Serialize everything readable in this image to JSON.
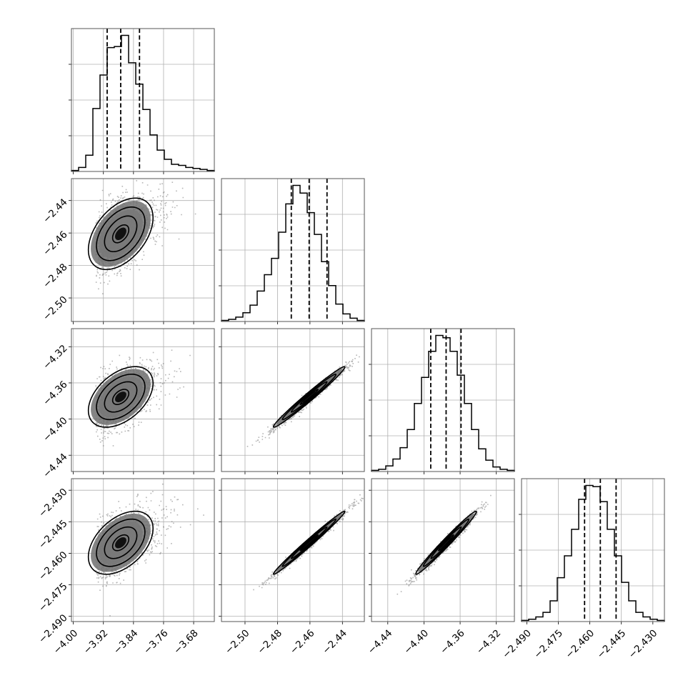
{
  "chart_data": {
    "type": "corner",
    "parameters": [
      {
        "ticks": [
          -4.0,
          -3.92,
          -3.84,
          -3.76,
          -3.68
        ],
        "tick_labels": [
          "−4.00",
          "−3.92",
          "−3.84",
          "−3.76",
          "−3.68"
        ],
        "range": [
          -4.005,
          -3.625
        ],
        "quantiles": [
          -3.91,
          -3.874,
          -3.824
        ],
        "median": -3.874
      },
      {
        "ticks": [
          -2.5,
          -2.48,
          -2.46,
          -2.44
        ],
        "tick_labels": [
          "−2.50",
          "−2.48",
          "−2.46",
          "−2.44"
        ],
        "range": [
          -2.5145,
          -2.4265
        ],
        "quantiles": [
          -2.4715,
          -2.4605,
          -2.4495
        ],
        "median": -2.4605
      },
      {
        "ticks": [
          -4.44,
          -4.4,
          -4.36,
          -4.32
        ],
        "tick_labels": [
          "−4.44",
          "−4.40",
          "−4.36",
          "−4.32"
        ],
        "range": [
          -4.458,
          -4.3
        ],
        "quantiles": [
          -4.3925,
          -4.3755,
          -4.359
        ],
        "median": -4.3755
      },
      {
        "ticks": [
          -2.49,
          -2.475,
          -2.46,
          -2.445,
          -2.43
        ],
        "tick_labels": [
          "−2.490",
          "−2.475",
          "−2.460",
          "−2.445",
          "−2.430"
        ],
        "range": [
          -2.4925,
          -2.4245
        ],
        "quantiles": [
          -2.4625,
          -2.455,
          -2.4475
        ],
        "median": -2.455
      }
    ],
    "histograms": [
      [
        1,
        4,
        16,
        62,
        95,
        122,
        123,
        134,
        107,
        86,
        61,
        36,
        21,
        12,
        7,
        6,
        4,
        3,
        2,
        1
      ],
      [
        1,
        2,
        4,
        8,
        15,
        28,
        43,
        58,
        82,
        108,
        125,
        118,
        100,
        80,
        55,
        33,
        16,
        7,
        3,
        1
      ],
      [
        1,
        2,
        5,
        11,
        21,
        37,
        60,
        83,
        106,
        120,
        118,
        106,
        85,
        60,
        37,
        20,
        10,
        4,
        2,
        1
      ],
      [
        1,
        2,
        4,
        8,
        18,
        38,
        57,
        80,
        106,
        118,
        117,
        104,
        80,
        57,
        34,
        18,
        8,
        4,
        2,
        1
      ]
    ],
    "pairs": [
      {
        "x": 0,
        "y": 1,
        "correlation": 0.45
      },
      {
        "x": 0,
        "y": 2,
        "correlation": 0.45
      },
      {
        "x": 1,
        "y": 2,
        "correlation": 0.985
      },
      {
        "x": 0,
        "y": 3,
        "correlation": 0.45
      },
      {
        "x": 1,
        "y": 3,
        "correlation": 0.99
      },
      {
        "x": 2,
        "y": 3,
        "correlation": 0.985
      }
    ],
    "contour_levels_sigma": [
      0.5,
      1.0,
      1.5,
      2.0
    ],
    "grid": true,
    "title": "",
    "colors": {
      "line": "#000000",
      "samples": "#7a7a7a",
      "grid": "#b0b0b0"
    }
  }
}
